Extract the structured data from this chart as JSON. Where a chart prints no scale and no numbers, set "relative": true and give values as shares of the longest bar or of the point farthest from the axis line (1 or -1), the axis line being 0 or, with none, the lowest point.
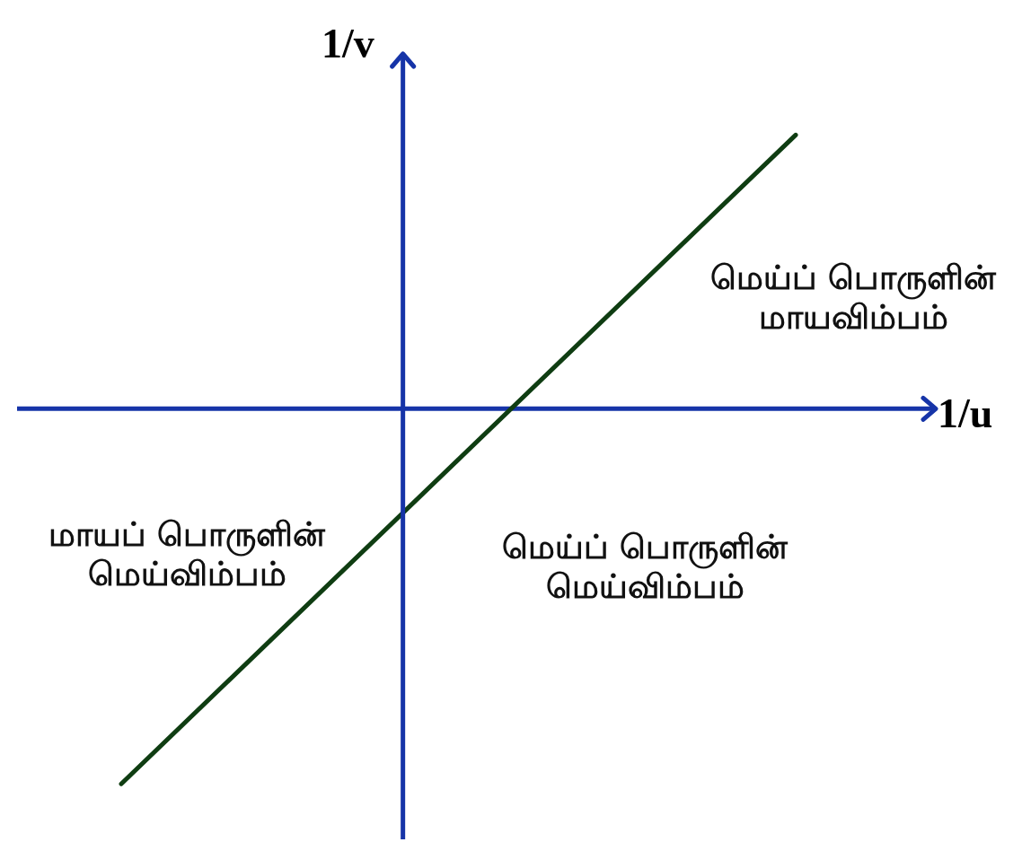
{
  "chart_data": {
    "type": "line",
    "relative": true,
    "xlabel": "1/u",
    "ylabel": "1/v",
    "categories": [
      null,
      null
    ],
    "values": [
      -1,
      0.73
    ],
    "color": "#0f3d12",
    "marker": "none",
    "ref_lines": [
      {
        "axis": "y",
        "value": 0,
        "color": "#1634a8"
      }
    ],
    "annotations": [
      "மெய்ப் பொருளின்\nமாயவிம்பம்",
      "மாயப் பொருளின்\nமெய்விம்பம்",
      "மெய்ப் பொருளின்\nமெய்விம்பம்"
    ]
  }
}
